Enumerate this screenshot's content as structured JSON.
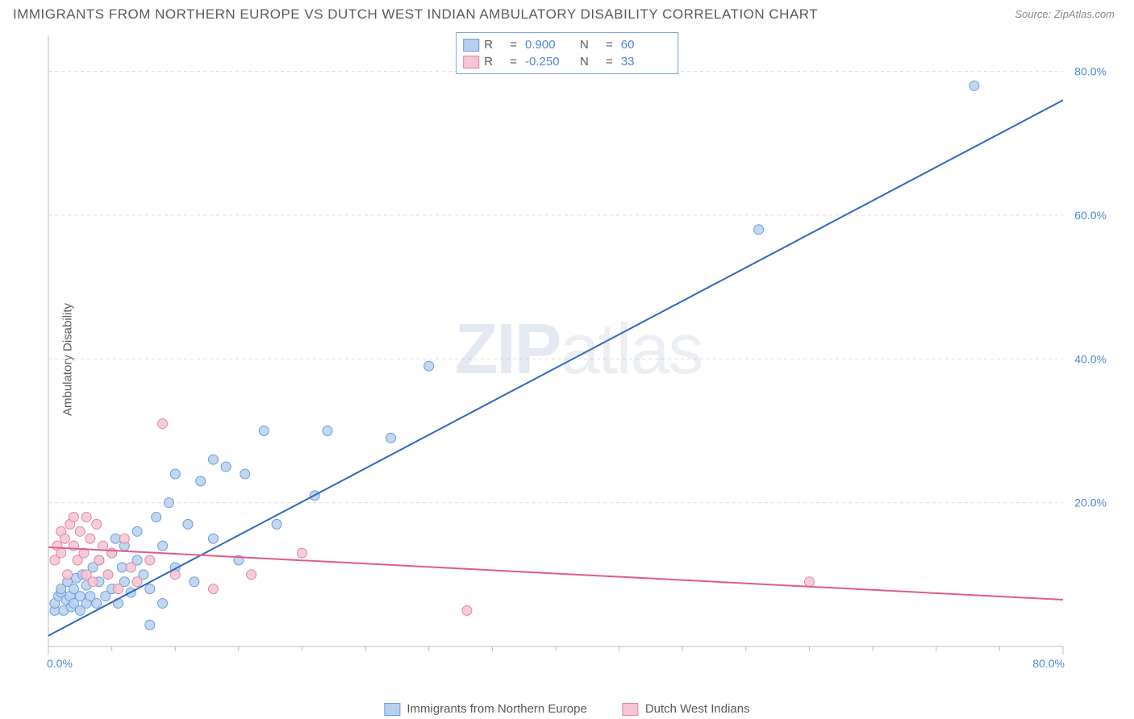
{
  "title": "IMMIGRANTS FROM NORTHERN EUROPE VS DUTCH WEST INDIAN AMBULATORY DISABILITY CORRELATION CHART",
  "source": "Source: ZipAtlas.com",
  "ylabel": "Ambulatory Disability",
  "watermark_bold": "ZIP",
  "watermark_light": "atlas",
  "chart": {
    "type": "scatter",
    "xlim": [
      0,
      80
    ],
    "ylim": [
      0,
      85
    ],
    "x_ticks": [
      0,
      80
    ],
    "x_tick_labels": [
      "0.0%",
      "80.0%"
    ],
    "y_ticks": [
      20,
      40,
      60,
      80
    ],
    "y_tick_labels": [
      "20.0%",
      "40.0%",
      "60.0%",
      "80.0%"
    ],
    "x_minor_ticks": [
      5,
      10,
      15,
      20,
      25,
      30,
      35,
      40,
      45,
      50,
      55,
      60,
      65,
      70,
      75
    ],
    "grid_color": "#dddddd",
    "axis_color": "#bcbcbc",
    "plot_bg": "#ffffff",
    "series": [
      {
        "label": "Immigrants from Northern Europe",
        "marker_fill": "#b8d0ee",
        "marker_stroke": "#6a9edc",
        "marker_radius": 6,
        "line_color": "#2f66c4",
        "line_width": 2,
        "trend": {
          "x1": 0,
          "y1": 1.5,
          "x2": 80,
          "y2": 76
        },
        "R": "0.900",
        "N": "60",
        "points": [
          [
            0.5,
            5
          ],
          [
            0.5,
            6
          ],
          [
            0.8,
            7
          ],
          [
            1,
            7.5
          ],
          [
            1,
            8
          ],
          [
            1.2,
            5
          ],
          [
            1.4,
            6.5
          ],
          [
            1.5,
            9
          ],
          [
            1.7,
            7
          ],
          [
            1.8,
            5.5
          ],
          [
            2,
            6
          ],
          [
            2,
            8
          ],
          [
            2.2,
            9.5
          ],
          [
            2.5,
            7
          ],
          [
            2.5,
            5
          ],
          [
            2.7,
            10
          ],
          [
            3,
            6
          ],
          [
            3,
            8.5
          ],
          [
            3.3,
            7
          ],
          [
            3.5,
            11
          ],
          [
            3.8,
            6
          ],
          [
            4,
            9
          ],
          [
            4,
            12
          ],
          [
            4.5,
            7
          ],
          [
            4.7,
            10
          ],
          [
            5,
            8
          ],
          [
            5,
            13
          ],
          [
            5.3,
            15
          ],
          [
            5.5,
            6
          ],
          [
            5.8,
            11
          ],
          [
            6,
            9
          ],
          [
            6,
            14
          ],
          [
            6.5,
            7.5
          ],
          [
            7,
            12
          ],
          [
            7,
            16
          ],
          [
            7.5,
            10
          ],
          [
            8,
            8
          ],
          [
            8,
            3
          ],
          [
            8.5,
            18
          ],
          [
            9,
            14
          ],
          [
            9,
            6
          ],
          [
            9.5,
            20
          ],
          [
            10,
            11
          ],
          [
            10,
            24
          ],
          [
            11,
            17
          ],
          [
            11.5,
            9
          ],
          [
            12,
            23
          ],
          [
            13,
            15
          ],
          [
            13,
            26
          ],
          [
            14,
            25
          ],
          [
            15,
            12
          ],
          [
            15.5,
            24
          ],
          [
            17,
            30
          ],
          [
            18,
            17
          ],
          [
            21,
            21
          ],
          [
            22,
            30
          ],
          [
            27,
            29
          ],
          [
            30,
            39
          ],
          [
            56,
            58
          ],
          [
            73,
            78
          ]
        ]
      },
      {
        "label": "Dutch West Indians",
        "marker_fill": "#f4c5d3",
        "marker_stroke": "#e184a5",
        "marker_radius": 6,
        "line_color": "#e05a8a",
        "line_width": 2,
        "trend": {
          "x1": 0,
          "y1": 13.8,
          "x2": 80,
          "y2": 6.5
        },
        "R": "-0.250",
        "N": "33",
        "points": [
          [
            0.5,
            12
          ],
          [
            0.7,
            14
          ],
          [
            1,
            13
          ],
          [
            1,
            16
          ],
          [
            1.3,
            15
          ],
          [
            1.5,
            10
          ],
          [
            1.7,
            17
          ],
          [
            2,
            14
          ],
          [
            2,
            18
          ],
          [
            2.3,
            12
          ],
          [
            2.5,
            16
          ],
          [
            2.8,
            13
          ],
          [
            3,
            18
          ],
          [
            3,
            10
          ],
          [
            3.3,
            15
          ],
          [
            3.5,
            9
          ],
          [
            3.8,
            17
          ],
          [
            4,
            12
          ],
          [
            4.3,
            14
          ],
          [
            4.7,
            10
          ],
          [
            5,
            13
          ],
          [
            5.5,
            8
          ],
          [
            6,
            15
          ],
          [
            6.5,
            11
          ],
          [
            7,
            9
          ],
          [
            8,
            12
          ],
          [
            9,
            31
          ],
          [
            10,
            10
          ],
          [
            13,
            8
          ],
          [
            16,
            10
          ],
          [
            20,
            13
          ],
          [
            33,
            5
          ],
          [
            60,
            9
          ]
        ]
      }
    ]
  },
  "legend_top": {
    "R_label": "R",
    "N_label": "N",
    "equals": "="
  }
}
